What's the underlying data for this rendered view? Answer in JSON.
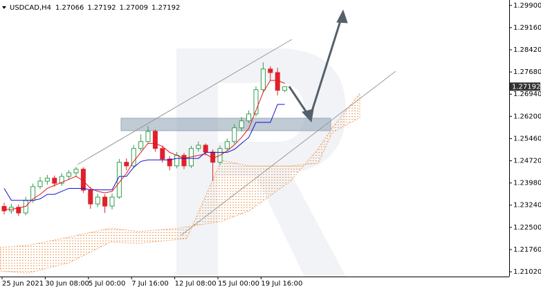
{
  "chart_data": {
    "type": "candlestick",
    "symbol": "USDCAD,H4",
    "up_color": "#2e9e4a",
    "down_color": "#e0202a",
    "categories": [
      "25 Jun 2021",
      null,
      null,
      null,
      null,
      null,
      "30 Jun 08:00",
      null,
      null,
      null,
      null,
      null,
      "5 Jul 00:00",
      null,
      null,
      null,
      null,
      null,
      "7 Jul 16:00",
      null,
      null,
      null,
      null,
      null,
      "12 Jul 08:00",
      null,
      null,
      null,
      null,
      null,
      "15 Jul 00:00",
      null,
      null,
      null,
      null,
      null,
      "19 Jul 16:00",
      null,
      null,
      null
    ],
    "open": [
      1.232,
      1.2305,
      1.2317,
      1.2298,
      1.234,
      1.2386,
      1.2404,
      1.2414,
      1.2397,
      1.242,
      1.2432,
      1.2444,
      1.2374,
      1.2328,
      1.2351,
      1.2321,
      1.2351,
      1.2467,
      1.2455,
      1.2513,
      1.2536,
      1.257,
      1.2513,
      1.2478,
      1.2455,
      1.249,
      1.2455,
      1.2513,
      1.2524,
      1.2501,
      1.2467,
      1.2513,
      1.2536,
      1.2582,
      1.2605,
      1.2628,
      1.2709,
      1.2778,
      1.2766,
      1.27066
    ],
    "high": [
      1.2332,
      1.2329,
      1.2326,
      1.2352,
      1.2396,
      1.2418,
      1.2425,
      1.2423,
      1.2431,
      1.2441,
      1.2452,
      1.245,
      1.2385,
      1.2362,
      1.236,
      1.2363,
      1.2478,
      1.248,
      1.2525,
      1.256,
      1.2588,
      1.2576,
      1.2522,
      1.2488,
      1.2501,
      1.2498,
      1.2522,
      1.2536,
      1.253,
      1.251,
      1.2523,
      1.2546,
      1.2594,
      1.2618,
      1.264,
      1.272,
      1.28,
      1.2787,
      1.2782,
      1.27192
    ],
    "low": [
      1.2293,
      1.2295,
      1.2288,
      1.229,
      1.2332,
      1.2378,
      1.2392,
      1.2386,
      1.2388,
      1.241,
      1.2418,
      1.2365,
      1.2312,
      1.2318,
      1.2298,
      1.231,
      1.2345,
      1.244,
      1.2448,
      1.2505,
      1.2528,
      1.2502,
      1.2466,
      1.244,
      1.2447,
      1.2444,
      1.2448,
      1.2503,
      1.249,
      1.2405,
      1.2458,
      1.2505,
      1.2528,
      1.257,
      1.2598,
      1.262,
      1.27,
      1.274,
      1.269,
      1.27009
    ],
    "close": [
      1.2305,
      1.2317,
      1.2298,
      1.234,
      1.2386,
      1.2404,
      1.2414,
      1.2397,
      1.242,
      1.2432,
      1.2444,
      1.2374,
      1.2328,
      1.2351,
      1.2321,
      1.2351,
      1.2467,
      1.2455,
      1.2513,
      1.2536,
      1.257,
      1.2513,
      1.2478,
      1.2455,
      1.249,
      1.2455,
      1.2513,
      1.2524,
      1.2501,
      1.2467,
      1.2513,
      1.2536,
      1.2582,
      1.2605,
      1.2628,
      1.2709,
      1.2778,
      1.2766,
      1.2707,
      1.27192
    ],
    "lines": [
      {
        "color": "#e8141c",
        "values": [
          1.231,
          1.231,
          1.2315,
          1.232,
          1.2345,
          1.236,
          1.238,
          1.239,
          1.24,
          1.241,
          1.242,
          1.2405,
          1.238,
          1.237,
          1.2365,
          1.237,
          1.24,
          1.243,
          1.247,
          1.25,
          1.253,
          1.253,
          1.252,
          1.25,
          1.249,
          1.248,
          1.2485,
          1.249,
          1.2495,
          1.248,
          1.249,
          1.2505,
          1.2525,
          1.255,
          1.258,
          1.264,
          1.27,
          1.274,
          1.274,
          1.273
        ]
      },
      {
        "color": "#1010d0",
        "values": [
          1.238,
          1.234,
          1.234,
          1.234,
          1.234,
          1.2345,
          1.236,
          1.236,
          1.237,
          1.238,
          1.238,
          1.238,
          1.2375,
          1.2375,
          1.2375,
          1.2375,
          1.242,
          1.242,
          1.245,
          1.247,
          1.2475,
          1.2475,
          1.2475,
          1.2475,
          1.248,
          1.248,
          1.248,
          1.248,
          1.25,
          1.25,
          1.25,
          1.25,
          1.251,
          1.253,
          1.255,
          1.26,
          1.26,
          1.26,
          1.266,
          1.266
        ]
      }
    ],
    "ylim": [
      1.2086,
      1.3008
    ],
    "yticks": [
      {
        "value": 1.299,
        "label": "1.29900"
      },
      {
        "value": 1.2916,
        "label": "1.29160"
      },
      {
        "value": 1.2842,
        "label": "1.28420"
      },
      {
        "value": 1.2768,
        "label": "1.27680"
      },
      {
        "value": 1.2694,
        "label": "1.26940"
      },
      {
        "value": 1.262,
        "label": "1.26200"
      },
      {
        "value": 1.2546,
        "label": "1.25460"
      },
      {
        "value": 1.2472,
        "label": "1.24720"
      },
      {
        "value": 1.2398,
        "label": "1.23980"
      },
      {
        "value": 1.2324,
        "label": "1.23240"
      },
      {
        "value": 1.225,
        "label": "1.22500"
      },
      {
        "value": 1.2176,
        "label": "1.21760"
      },
      {
        "value": 1.2102,
        "label": "1.21020"
      }
    ]
  }
}
